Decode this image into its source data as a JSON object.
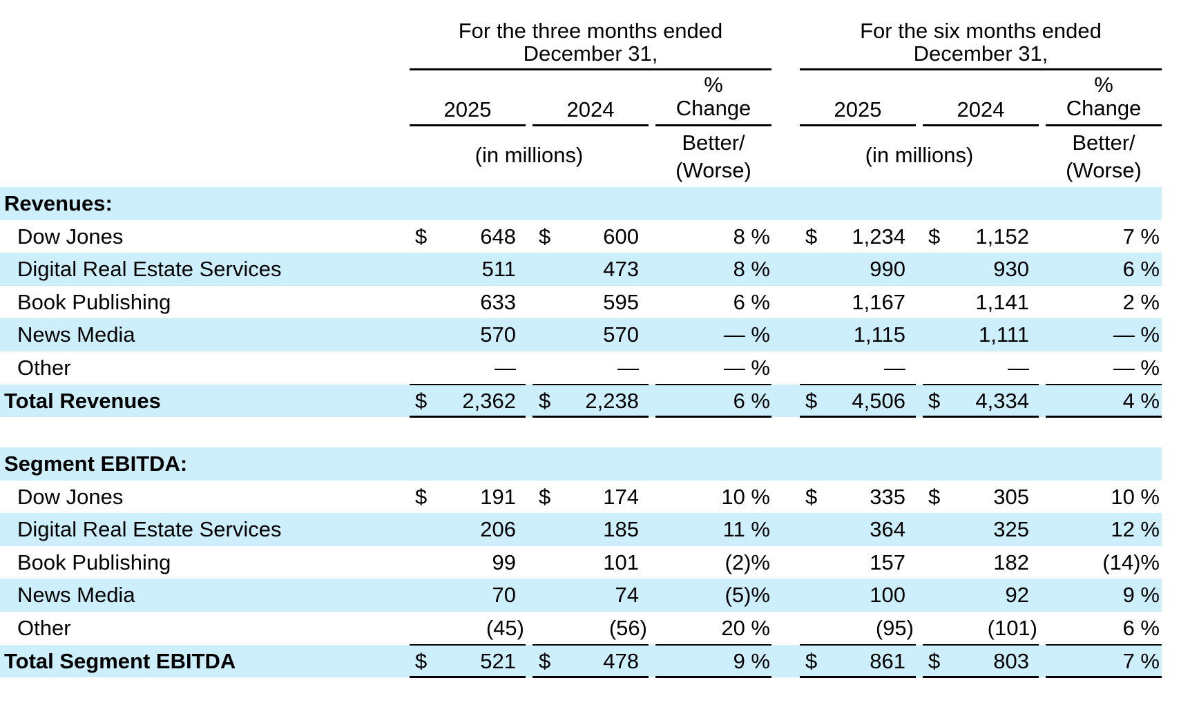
{
  "header": {
    "three_months": {
      "line1": "For the three months ended",
      "line2": "December 31,"
    },
    "six_months": {
      "line1": "For the six months ended",
      "line2": "December 31,"
    },
    "col_2025": "2025",
    "col_2024": "2024",
    "pct": "%",
    "change": "Change",
    "in_millions": "(in millions)",
    "better": "Better/",
    "worse": "(Worse)"
  },
  "currency_symbol": "$",
  "revenues": {
    "title": "Revenues:",
    "rows": [
      {
        "label": "Dow Jones",
        "q25": "648",
        "q24": "600",
        "qpct": "8 %",
        "h25": "1,234",
        "h24": "1,152",
        "hpct": "7 %"
      },
      {
        "label": "Digital Real Estate Services",
        "q25": "511",
        "q24": "473",
        "qpct": "8 %",
        "h25": "990",
        "h24": "930",
        "hpct": "6 %"
      },
      {
        "label": "Book Publishing",
        "q25": "633",
        "q24": "595",
        "qpct": "6 %",
        "h25": "1,167",
        "h24": "1,141",
        "hpct": "2 %"
      },
      {
        "label": "News Media",
        "q25": "570",
        "q24": "570",
        "qpct": "— %",
        "h25": "1,115",
        "h24": "1,111",
        "hpct": "— %"
      },
      {
        "label": "Other",
        "q25": "—",
        "q24": "—",
        "qpct": "— %",
        "h25": "—",
        "h24": "—",
        "hpct": "— %"
      }
    ],
    "total": {
      "label": "Total Revenues",
      "q25": "2,362",
      "q24": "2,238",
      "qpct": "6 %",
      "h25": "4,506",
      "h24": "4,334",
      "hpct": "4 %"
    }
  },
  "ebitda": {
    "title": "Segment EBITDA:",
    "rows": [
      {
        "label": "Dow Jones",
        "q25": "191",
        "q24": "174",
        "qpct": "10 %",
        "h25": "335",
        "h24": "305",
        "hpct": "10 %"
      },
      {
        "label": "Digital Real Estate Services",
        "q25": "206",
        "q24": "185",
        "qpct": "11 %",
        "h25": "364",
        "h24": "325",
        "hpct": "12 %"
      },
      {
        "label": "Book Publishing",
        "q25": "99",
        "q24": "101",
        "qpct": "(2)%",
        "h25": "157",
        "h24": "182",
        "hpct": "(14)%"
      },
      {
        "label": "News Media",
        "q25": "70",
        "q24": "74",
        "qpct": "(5)%",
        "h25": "100",
        "h24": "92",
        "hpct": "9 %"
      },
      {
        "label": "Other",
        "q25": "(45)",
        "q24": "(56)",
        "qpct": "20 %",
        "h25": "(95)",
        "h24": "(101)",
        "hpct": "6 %"
      }
    ],
    "total": {
      "label": "Total Segment EBITDA",
      "q25": "521",
      "q24": "478",
      "qpct": "9 %",
      "h25": "861",
      "h24": "803",
      "hpct": "7 %"
    }
  }
}
